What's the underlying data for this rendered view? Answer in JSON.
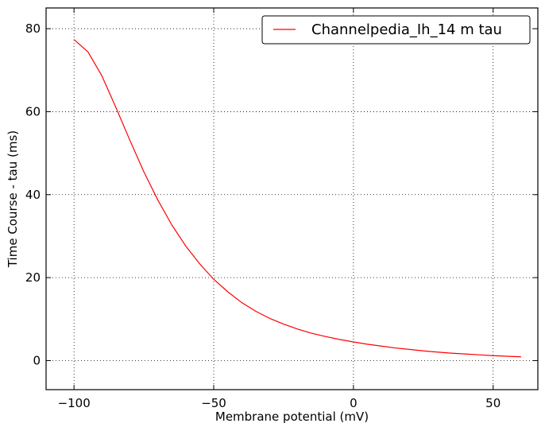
{
  "chart_data": {
    "type": "line",
    "title": "",
    "xlabel": "Membrane potential (mV)",
    "ylabel": "Time Course - tau (ms)",
    "xlim": [
      -110,
      66
    ],
    "ylim": [
      -7,
      85
    ],
    "xticks": [
      -100,
      -50,
      0,
      50
    ],
    "yticks": [
      0,
      20,
      40,
      60,
      80
    ],
    "xtick_labels": [
      "−100",
      "−50",
      "0",
      "50"
    ],
    "ytick_labels": [
      "0",
      "20",
      "40",
      "60",
      "80"
    ],
    "grid": true,
    "legend_position": "top-right",
    "series": [
      {
        "name": "Channelpedia_Ih_14 m tau",
        "color": "#ff0000",
        "x": [
          -100,
          -95,
          -90,
          -85,
          -80,
          -75,
          -70,
          -65,
          -60,
          -55,
          -50,
          -45,
          -40,
          -35,
          -30,
          -25,
          -20,
          -15,
          -10,
          -5,
          0,
          5,
          10,
          15,
          20,
          25,
          30,
          35,
          40,
          45,
          50,
          55,
          60
        ],
        "y": [
          77.4,
          74.4,
          68.6,
          61.0,
          53.1,
          45.5,
          38.7,
          32.7,
          27.6,
          23.3,
          19.6,
          16.6,
          14.0,
          11.9,
          10.2,
          8.8,
          7.6,
          6.6,
          5.8,
          5.1,
          4.5,
          3.95,
          3.5,
          3.05,
          2.7,
          2.35,
          2.05,
          1.8,
          1.6,
          1.4,
          1.2,
          1.05,
          0.9
        ]
      }
    ]
  }
}
